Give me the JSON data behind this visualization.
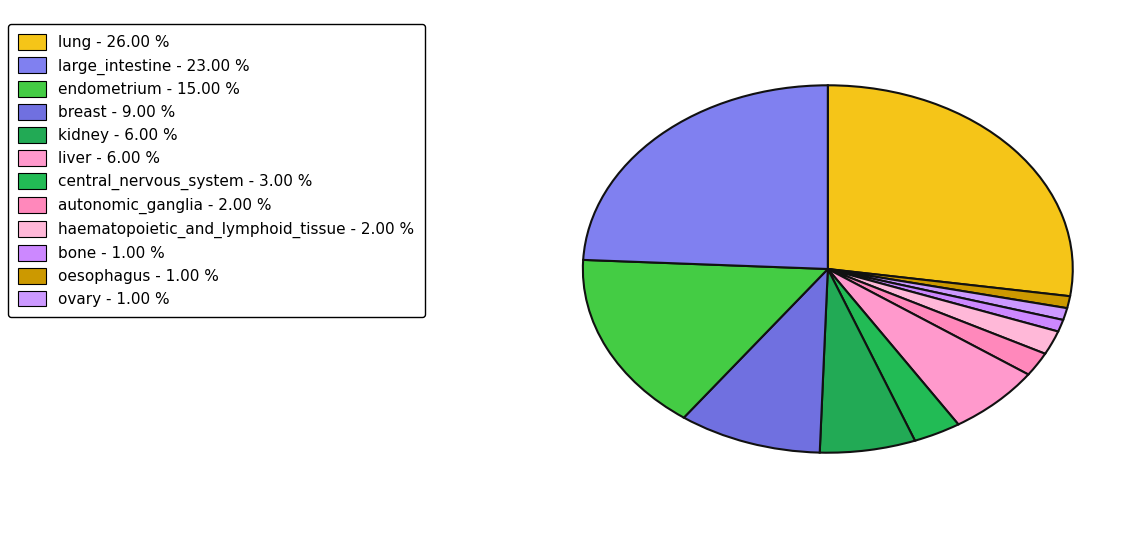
{
  "legend_labels": [
    "lung - 26.00 %",
    "large_intestine - 23.00 %",
    "endometrium - 15.00 %",
    "breast - 9.00 %",
    "kidney - 6.00 %",
    "liver - 6.00 %",
    "central_nervous_system - 3.00 %",
    "autonomic_ganglia - 2.00 %",
    "haematopoietic_and_lymphoid_tissue - 2.00 %",
    "bone - 1.00 %",
    "oesophagus - 1.00 %",
    "ovary - 1.00 %"
  ],
  "legend_colors": [
    "#F5C518",
    "#8080F0",
    "#44CC44",
    "#7070E0",
    "#22AA55",
    "#FF99CC",
    "#22BB55",
    "#FF88BB",
    "#FFB8D8",
    "#CC88FF",
    "#CC9900",
    "#CC99FF"
  ],
  "slice_order": [
    "lung",
    "oesophagus",
    "ovary",
    "bone",
    "haematopoietic_and_lymphoid_tissue",
    "autonomic_ganglia",
    "liver",
    "central_nervous_system",
    "kidney",
    "breast",
    "endometrium",
    "large_intestine"
  ],
  "values": [
    26,
    1,
    1,
    1,
    2,
    2,
    6,
    3,
    6,
    9,
    15,
    23
  ],
  "colors": [
    "#F5C518",
    "#CC9900",
    "#CC99FF",
    "#CC88FF",
    "#FFB8D8",
    "#FF88BB",
    "#FF99CC",
    "#22BB55",
    "#22AA55",
    "#7070E0",
    "#44CC44",
    "#8080F0"
  ],
  "figsize": [
    11.34,
    5.38
  ],
  "dpi": 100,
  "startangle": 90,
  "edgecolor": "#111111",
  "linewidth": 1.5,
  "aspect_ratio": 0.75
}
